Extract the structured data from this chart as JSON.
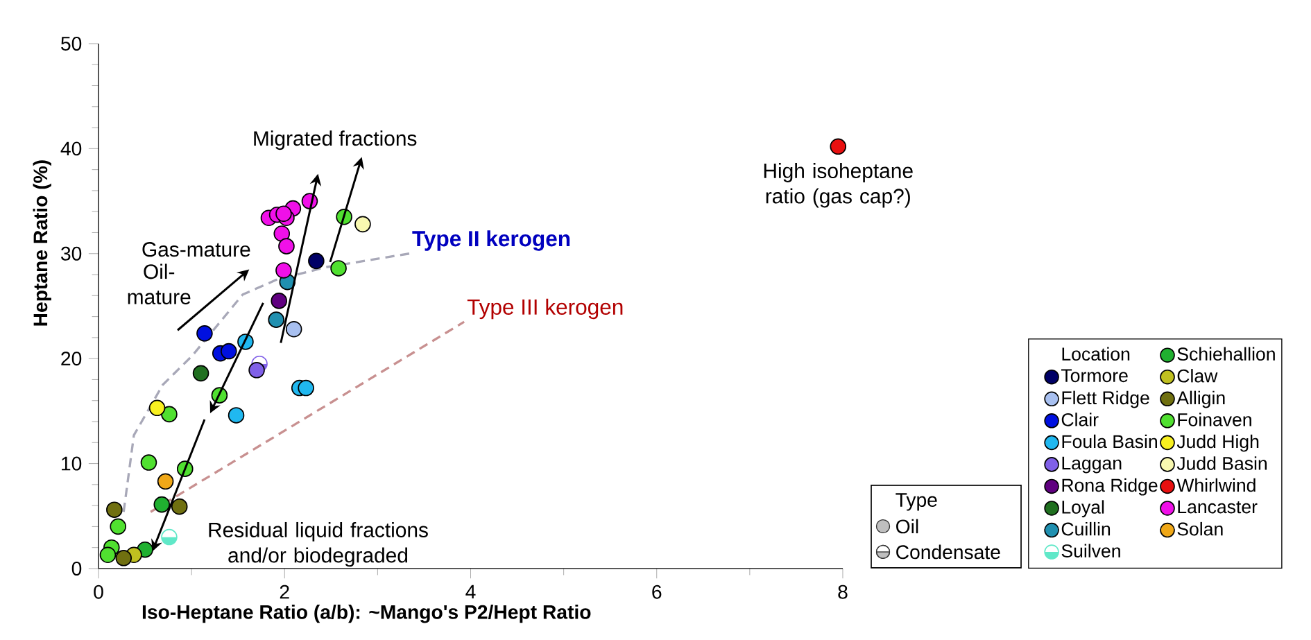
{
  "chart_data": {
    "type": "scatter",
    "xlabel": "Iso-Heptane Ratio (a/b): ~Mango's P2/Hept Ratio",
    "ylabel": "Heptane Ratio (%)",
    "legend_title": "Location",
    "xlim": [
      0,
      8
    ],
    "ylim": [
      0,
      50
    ],
    "xticks": [
      0,
      2,
      4,
      6,
      8
    ],
    "yticks": [
      0,
      10,
      20,
      30,
      40,
      50
    ],
    "legend": "right",
    "series": [
      {
        "name": "Tormore",
        "color": "#000066",
        "marker": "circle",
        "x": [
          2.34
        ],
        "values": [
          29.3
        ]
      },
      {
        "name": "Flett Ridge",
        "color": "#a8c0f0",
        "marker": "circle",
        "x": [
          2.1
        ],
        "values": [
          22.8
        ]
      },
      {
        "name": "Clair",
        "color": "#0010e0",
        "marker": "circle",
        "x": [
          1.14,
          1.31,
          1.4
        ],
        "values": [
          22.4,
          20.5,
          20.7
        ]
      },
      {
        "name": "Foula Basin",
        "color": "#20b8f0",
        "marker": "circle",
        "x": [
          1.58,
          2.16,
          2.23,
          1.48
        ],
        "values": [
          21.6,
          17.2,
          17.2,
          14.6
        ]
      },
      {
        "color": "#8060e8",
        "marker": "half circle",
        "x": [
          1.73
        ],
        "values": [
          19.5
        ]
      },
      {
        "name": "Laggan",
        "color": "#8060e8",
        "marker": "circle",
        "x": [
          1.7
        ],
        "values": [
          18.9
        ]
      },
      {
        "name": "Rona Ridge",
        "color": "#600080",
        "marker": "circle",
        "x": [
          1.94
        ],
        "values": [
          25.5
        ]
      },
      {
        "name": "Loyal",
        "color": "#207020",
        "marker": "circle",
        "x": [
          1.1
        ],
        "values": [
          18.6
        ]
      },
      {
        "name": "Cuillin",
        "color": "#2090b0",
        "marker": "circle",
        "x": [
          1.91,
          2.03
        ],
        "values": [
          23.7,
          27.3
        ]
      },
      {
        "name": "Suilven",
        "color": "#60e8c8",
        "marker": "half circle",
        "x": [
          0.76
        ],
        "values": [
          3.0
        ]
      },
      {
        "name": "Schiehallion",
        "color": "#20b030",
        "marker": "circle",
        "x": [
          0.68,
          0.5
        ],
        "values": [
          6.1,
          1.8
        ]
      },
      {
        "name": "Claw",
        "color": "#c0c020",
        "marker": "circle",
        "x": [
          0.38
        ],
        "values": [
          1.3
        ]
      },
      {
        "name": "Alligin",
        "color": "#707010",
        "marker": "circle",
        "x": [
          0.87,
          0.17,
          0.27
        ],
        "values": [
          5.9,
          5.6,
          1.0
        ]
      },
      {
        "name": "Foinaven",
        "color": "#50e030",
        "marker": "circle",
        "x": [
          1.3,
          0.76,
          0.54,
          0.93,
          0.21,
          0.14,
          0.1,
          2.64,
          2.58
        ],
        "values": [
          16.5,
          14.7,
          10.1,
          9.5,
          4.0,
          2.0,
          1.3,
          33.5,
          28.6
        ]
      },
      {
        "name": "Judd High",
        "color": "#f8f020",
        "marker": "circle",
        "x": [
          0.63
        ],
        "values": [
          15.3
        ]
      },
      {
        "name": "Judd Basin",
        "color": "#f8f8b0",
        "marker": "circle",
        "x": [
          2.84
        ],
        "values": [
          32.8
        ]
      },
      {
        "name": "Whirlwind",
        "color": "#e81010",
        "marker": "circle",
        "x": [
          7.95
        ],
        "values": [
          40.2
        ]
      },
      {
        "name": "Lancaster",
        "color": "#f010e8",
        "marker": "circle",
        "x": [
          1.83,
          1.92,
          2.09,
          2.02,
          1.99,
          2.27,
          1.97,
          2.02,
          1.99
        ],
        "values": [
          33.4,
          33.7,
          34.3,
          33.4,
          33.8,
          35.0,
          31.9,
          30.7,
          28.4
        ]
      },
      {
        "name": "Solan",
        "color": "#f0a818",
        "marker": "circle",
        "x": [
          0.72
        ],
        "values": [
          8.3
        ]
      },
      {
        "type": "line",
        "marker": "none",
        "line_style": "dashed",
        "color": "#a8a8b8",
        "x": [
          0.27,
          0.38,
          0.69,
          1.01,
          1.55,
          1.91,
          2.44,
          3.34
        ],
        "values": [
          5.4,
          12.7,
          17.5,
          20.3,
          26.1,
          27.5,
          28.7,
          30.0
        ]
      },
      {
        "type": "line",
        "marker": "none",
        "line_style": "dashed",
        "color": "#c89090",
        "x": [
          0.56,
          3.93
        ],
        "values": [
          5.4,
          23.5
        ]
      }
    ],
    "annotations": [
      "Migrated fractions",
      "Gas-mature",
      "Oil-mature",
      "Residual liquid fractions and/or biodegraded",
      {
        "text": "High isoheptane ratio (gas cap?)",
        "x": 7.95,
        "y": 40.2
      },
      {
        "text": "Type II kerogen",
        "x": 3.34,
        "y": 30.0
      },
      {
        "text": "Type III kerogen",
        "x": 3.93,
        "y": 23.5
      },
      "Type",
      "Oil",
      "Condensate"
    ]
  }
}
